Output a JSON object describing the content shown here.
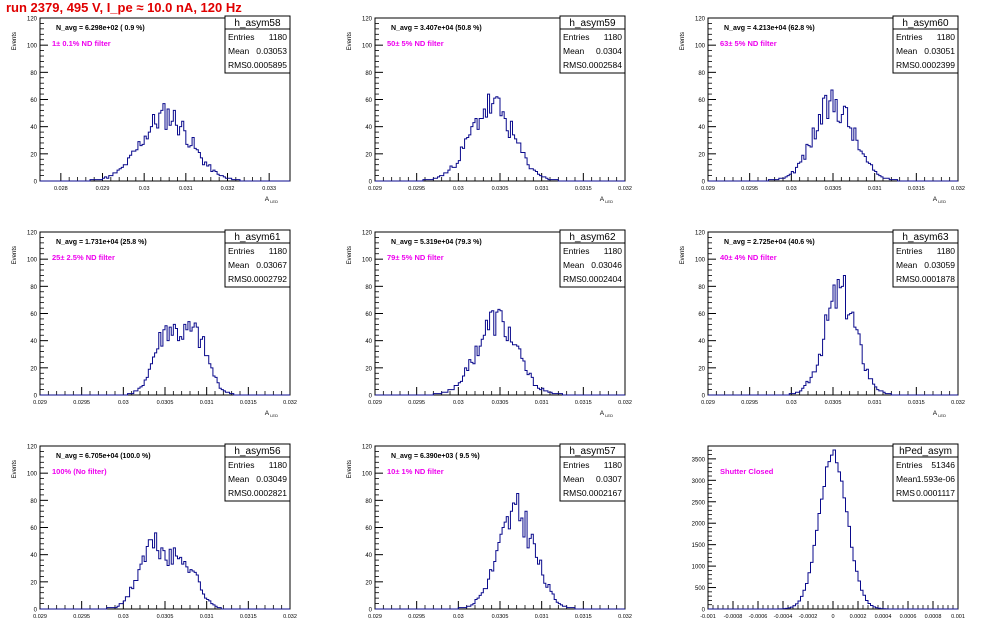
{
  "title": "run 2379,   495 V, I_pe ≈ 10.0 nA, 120 Hz",
  "colors": {
    "title": "#e00000",
    "line": "#0a0a8c",
    "annotation": "#ee00ee",
    "frame": "#000000"
  },
  "stats_labels": {
    "entries": "Entries",
    "mean": "Mean",
    "rms": "RMS"
  },
  "chart_data": [
    {
      "name": "h_asym58",
      "type": "histogram",
      "ylabel": "Events",
      "xlabel": "A",
      "xlabel_sub": "LED",
      "navg": "N_avg = 6.298e+02 ( 0.9 %)",
      "filter": "1± 0.1% ND filter",
      "entries": "1180",
      "mean": "0.03053",
      "rms": "0.0005895",
      "xlim": [
        0.0275,
        0.0335
      ],
      "ylim": [
        0,
        120
      ],
      "xticks": [
        0.028,
        0.029,
        0.03,
        0.031,
        0.032,
        0.033
      ],
      "xtick_labels": [
        "0.028",
        "0.029",
        "0.03",
        "0.031",
        "0.032",
        "0.033"
      ],
      "yticks": [
        0,
        20,
        40,
        60,
        80,
        100,
        120
      ],
      "mu": 0.03053,
      "sigma": 0.00059,
      "peak": 48,
      "n_bins": 120,
      "shape": "single",
      "seed": 11
    },
    {
      "name": "h_asym59",
      "type": "histogram",
      "ylabel": "Events",
      "xlabel": "A",
      "xlabel_sub": "LED",
      "navg": "N_avg = 3.407e+04 (50.8 %)",
      "filter": "50± 5% ND filter",
      "entries": "1180",
      "mean": "0.0304",
      "rms": "0.0002584",
      "xlim": [
        0.029,
        0.032
      ],
      "ylim": [
        0,
        120
      ],
      "xticks": [
        0.029,
        0.0295,
        0.03,
        0.0305,
        0.031,
        0.0315,
        0.032
      ],
      "xtick_labels": [
        "0.029",
        "0.0295",
        "0.03",
        "0.0305",
        "0.031",
        "0.0315",
        "0.032"
      ],
      "yticks": [
        0,
        20,
        40,
        60,
        80,
        100,
        120
      ],
      "mu": 0.0304,
      "sigma": 0.00026,
      "peak": 55,
      "n_bins": 120,
      "shape": "single",
      "seed": 23
    },
    {
      "name": "h_asym60",
      "type": "histogram",
      "ylabel": "Events",
      "xlabel": "A",
      "xlabel_sub": "LED",
      "navg": "N_avg = 4.213e+04 (62.8 %)",
      "filter": "63± 5% ND filter",
      "entries": "1180",
      "mean": "0.03051",
      "rms": "0.0002399",
      "xlim": [
        0.029,
        0.032
      ],
      "ylim": [
        0,
        120
      ],
      "xticks": [
        0.029,
        0.0295,
        0.03,
        0.0305,
        0.031,
        0.0315,
        0.032
      ],
      "xtick_labels": [
        "0.029",
        "0.0295",
        "0.03",
        "0.0305",
        "0.031",
        "0.0315",
        "0.032"
      ],
      "yticks": [
        0,
        20,
        40,
        60,
        80,
        100,
        120
      ],
      "mu": 0.03051,
      "sigma": 0.00024,
      "peak": 57,
      "n_bins": 120,
      "shape": "single",
      "seed": 37
    },
    {
      "name": "h_asym61",
      "type": "histogram",
      "ylabel": "Events",
      "xlabel": "A",
      "xlabel_sub": "LED",
      "navg": "N_avg = 1.731e+04 (25.8 %)",
      "filter": "25± 2.5% ND filter",
      "entries": "1180",
      "mean": "0.03067",
      "rms": "0.0002792",
      "xlim": [
        0.029,
        0.032
      ],
      "ylim": [
        0,
        120
      ],
      "xticks": [
        0.029,
        0.0295,
        0.03,
        0.0305,
        0.031,
        0.0315,
        0.032
      ],
      "xtick_labels": [
        "0.029",
        "0.0295",
        "0.03",
        "0.0305",
        "0.031",
        "0.0315",
        "0.032"
      ],
      "yticks": [
        0,
        20,
        40,
        60,
        80,
        100,
        120
      ],
      "mu": 0.03067,
      "sigma": 0.00028,
      "peak": 52,
      "n_bins": 120,
      "shape": "double",
      "seed": 41
    },
    {
      "name": "h_asym62",
      "type": "histogram",
      "ylabel": "Events",
      "xlabel": "A",
      "xlabel_sub": "LED",
      "navg": "N_avg = 5.319e+04 (79.3 %)",
      "filter": "79± 5% ND filter",
      "entries": "1180",
      "mean": "0.03046",
      "rms": "0.0002404",
      "xlim": [
        0.029,
        0.032
      ],
      "ylim": [
        0,
        120
      ],
      "xticks": [
        0.029,
        0.0295,
        0.03,
        0.0305,
        0.031,
        0.0315,
        0.032
      ],
      "xtick_labels": [
        "0.029",
        "0.0295",
        "0.03",
        "0.0305",
        "0.031",
        "0.0315",
        "0.032"
      ],
      "yticks": [
        0,
        20,
        40,
        60,
        80,
        100,
        120
      ],
      "mu": 0.03046,
      "sigma": 0.00024,
      "peak": 55,
      "n_bins": 120,
      "shape": "single",
      "seed": 53
    },
    {
      "name": "h_asym63",
      "type": "histogram",
      "ylabel": "Events",
      "xlabel": "A",
      "xlabel_sub": "LED",
      "navg": "N_avg = 2.725e+04 (40.6 %)",
      "filter": "40± 4% ND filter",
      "entries": "1180",
      "mean": "0.03059",
      "rms": "0.0001878",
      "xlim": [
        0.029,
        0.032
      ],
      "ylim": [
        0,
        120
      ],
      "xticks": [
        0.029,
        0.0295,
        0.03,
        0.0305,
        0.031,
        0.0315,
        0.032
      ],
      "xtick_labels": [
        "0.029",
        "0.0295",
        "0.03",
        "0.0305",
        "0.031",
        "0.0315",
        "0.032"
      ],
      "yticks": [
        0,
        20,
        40,
        60,
        80,
        100,
        120
      ],
      "mu": 0.03059,
      "sigma": 0.00019,
      "peak": 76,
      "n_bins": 120,
      "shape": "single",
      "seed": 67
    },
    {
      "name": "h_asym56",
      "type": "histogram",
      "ylabel": "Events",
      "xlabel": "A",
      "xlabel_sub": "LED",
      "navg": "N_avg = 6.705e+04 (100.0 %)",
      "filter": "100% (No filter)",
      "entries": "1180",
      "mean": "0.03049",
      "rms": "0.0002821",
      "xlim": [
        0.029,
        0.032
      ],
      "ylim": [
        0,
        120
      ],
      "xticks": [
        0.029,
        0.0295,
        0.03,
        0.0305,
        0.031,
        0.0315,
        0.032
      ],
      "xtick_labels": [
        "0.029",
        "0.0295",
        "0.03",
        "0.0305",
        "0.031",
        "0.0315",
        "0.032"
      ],
      "yticks": [
        0,
        20,
        40,
        60,
        80,
        100,
        120
      ],
      "mu": 0.03049,
      "sigma": 0.00028,
      "peak": 48,
      "n_bins": 120,
      "shape": "double2",
      "seed": 71
    },
    {
      "name": "h_asym57",
      "type": "histogram",
      "ylabel": "Events",
      "xlabel": "A",
      "xlabel_sub": "LED",
      "navg": "N_avg = 6.390e+03 ( 9.5 %)",
      "filter": "10± 1% ND filter",
      "entries": "1180",
      "mean": "0.0307",
      "rms": "0.0002167",
      "xlim": [
        0.029,
        0.032
      ],
      "ylim": [
        0,
        120
      ],
      "xticks": [
        0.029,
        0.0295,
        0.03,
        0.0305,
        0.031,
        0.0315,
        0.032
      ],
      "xtick_labels": [
        "0.029",
        "0.0295",
        "0.03",
        "0.0305",
        "0.031",
        "0.0315",
        "0.032"
      ],
      "yticks": [
        0,
        20,
        40,
        60,
        80,
        100,
        120
      ],
      "mu": 0.0307,
      "sigma": 0.00022,
      "peak": 70,
      "n_bins": 120,
      "shape": "single",
      "seed": 83
    },
    {
      "name": "hPed_asym",
      "type": "histogram",
      "ylabel": "",
      "xlabel": "",
      "xlabel_sub": "",
      "navg": "",
      "filter": "Shutter Closed",
      "entries": "51346",
      "mean": "1.593e-06",
      "rms": "0.0001117",
      "xlim": [
        -0.001,
        0.001
      ],
      "ylim": [
        0,
        3800
      ],
      "xticks": [
        -0.001,
        -0.0008,
        -0.0006,
        -0.0004,
        -0.0002,
        0,
        0.0002,
        0.0004,
        0.0006,
        0.0008,
        0.001
      ],
      "xtick_labels": [
        "-0.001",
        "-0.0008",
        "-0.0006",
        "-0.0004",
        "-0.0002",
        "0",
        "0.0002",
        "0.0004",
        "0.0006",
        "0.0008",
        "0.001"
      ],
      "yticks": [
        0,
        500,
        1000,
        1500,
        2000,
        2500,
        3000,
        3500
      ],
      "mu": 1.6e-06,
      "sigma": 0.000112,
      "peak": 3600,
      "n_bins": 100,
      "shape": "smooth",
      "seed": 97
    }
  ]
}
